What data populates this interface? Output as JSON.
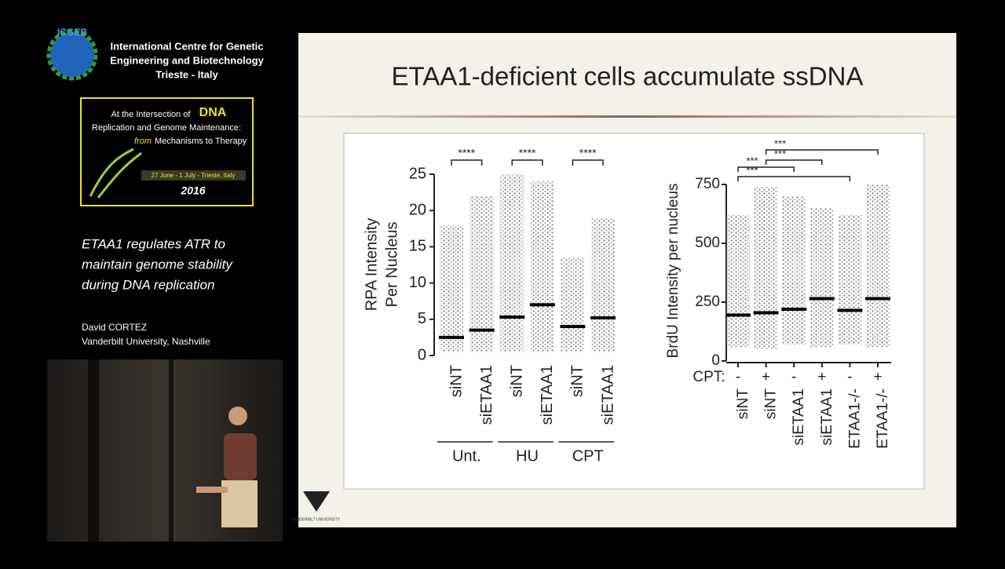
{
  "sidebar": {
    "logo": "ICGEB",
    "institute": [
      "International Centre for Genetic",
      "Engineering and Biotechnology",
      "Trieste - Italy"
    ],
    "conference": {
      "line1": "At the Intersection of",
      "highlight": "DNA",
      "line2": "Replication and Genome Maintenance:",
      "line3_italic": "from",
      "line3": "Mechanisms to Therapy",
      "dates": "27 June - 1 July - Trieste, Italy",
      "year": "2016"
    },
    "talk_title": [
      "ETAA1 regulates ATR to",
      "maintain genome stability",
      "during DNA replication"
    ],
    "speaker": "David CORTEZ",
    "affiliation": "Vanderbilt University, Nashville"
  },
  "slide": {
    "title": "ETAA1-deficient cells accumulate ssDNA",
    "logo_text": "VANDERBILT UNIVERSITY",
    "left_plot": {
      "y_label": [
        "RPA Intensity",
        "Per Nucleus"
      ],
      "ylim": [
        0,
        25
      ],
      "yticks": [
        0,
        5,
        10,
        15,
        20,
        25
      ],
      "conditions": [
        {
          "label": "Unt.",
          "significance": "****",
          "samples": [
            {
              "label": "siNT",
              "min": 0.5,
              "median": 2.5,
              "max": 18
            },
            {
              "label": "siETAA1",
              "min": 0.5,
              "median": 3.5,
              "max": 22
            }
          ]
        },
        {
          "label": "HU",
          "significance": "****",
          "samples": [
            {
              "label": "siNT",
              "min": 0.5,
              "median": 5.3,
              "max": 25
            },
            {
              "label": "siETAA1",
              "min": 0.5,
              "median": 7,
              "max": 24
            }
          ]
        },
        {
          "label": "CPT",
          "significance": "****",
          "samples": [
            {
              "label": "siNT",
              "min": 0.5,
              "median": 4,
              "max": 13.5
            },
            {
              "label": "siETAA1",
              "min": 0.5,
              "median": 5.2,
              "max": 19
            }
          ]
        }
      ]
    },
    "right_plot": {
      "y_label": "BrdU Intensity per nucleus",
      "row_label": "CPT:",
      "ylim": [
        0,
        750
      ],
      "yticks": [
        0,
        250,
        500,
        750
      ],
      "samples": [
        {
          "cpt": "-",
          "label": "siNT",
          "min": 60,
          "median": 195,
          "max": 620
        },
        {
          "cpt": "+",
          "label": "siNT",
          "min": 50,
          "median": 205,
          "max": 740
        },
        {
          "cpt": "-",
          "label": "siETAA1",
          "min": 70,
          "median": 220,
          "max": 700
        },
        {
          "cpt": "+",
          "label": "siETAA1",
          "min": 60,
          "median": 265,
          "max": 650
        },
        {
          "cpt": "-",
          "label": "ETAA1-/-",
          "min": 70,
          "median": 215,
          "max": 620
        },
        {
          "cpt": "+",
          "label": "ETAA1-/-",
          "min": 60,
          "median": 265,
          "max": 750
        }
      ],
      "comparisons": [
        "***",
        "***",
        "***",
        "***"
      ]
    }
  }
}
